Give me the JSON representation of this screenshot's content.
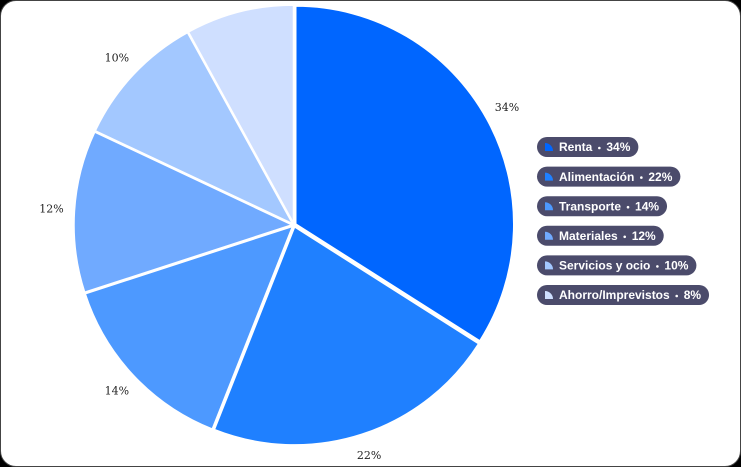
{
  "chart_data": {
    "type": "pie",
    "categories": [
      "Renta",
      "Alimentación",
      "Transporte",
      "Materiales",
      "Servicios y ocio",
      "Ahorro/Imprevistos"
    ],
    "values": [
      34,
      22,
      14,
      12,
      10,
      8
    ],
    "value_labels": [
      "34%",
      "22%",
      "14%",
      "12%",
      "10%",
      "8%"
    ],
    "colors": [
      "#0066ff",
      "#1f80ff",
      "#4d99ff",
      "#70aaff",
      "#a3c8ff",
      "#cfdfff"
    ],
    "legend": "right"
  }
}
